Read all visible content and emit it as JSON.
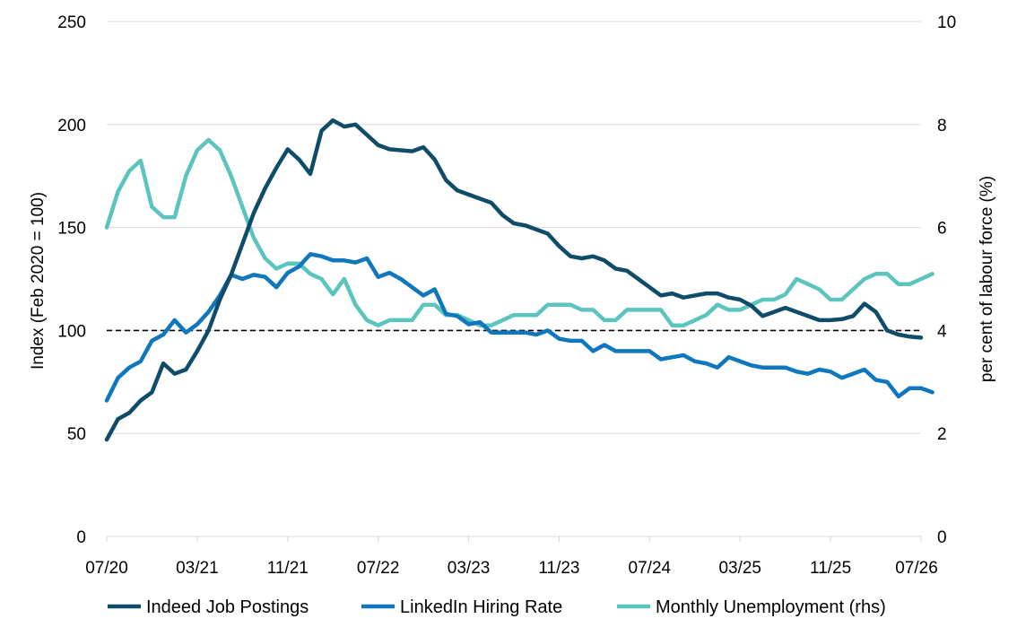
{
  "chart_data": {
    "type": "line",
    "title": "",
    "x_axis": {
      "tick_labels": [
        "07/20",
        "03/21",
        "11/21",
        "07/22",
        "03/23",
        "11/23",
        "07/24",
        "03/25",
        "11/25",
        "07/26"
      ],
      "range": [
        "2020-07",
        "2026-07"
      ]
    },
    "y_left": {
      "label": "Index (Feb 2020 = 100)",
      "ylim": [
        0,
        250
      ],
      "ticks": [
        0,
        50,
        100,
        150,
        200,
        250
      ]
    },
    "y_right": {
      "label": "per cent of labour force (%)",
      "ylim": [
        0,
        10
      ],
      "ticks": [
        0,
        2,
        4,
        6,
        8,
        10
      ]
    },
    "grid": "horizontal",
    "reference_line": {
      "value": 100,
      "axis": "left",
      "style": "dashed",
      "color": "#000000"
    },
    "legend_position": "bottom",
    "series": [
      {
        "name": "Indeed Job Postings",
        "axis": "left",
        "color": "#0f4c6a",
        "start": "2020-07",
        "values": [
          47,
          57,
          60,
          66,
          70,
          84,
          79,
          81,
          90,
          100,
          115,
          127,
          142,
          157,
          169,
          179,
          188,
          183,
          176,
          197,
          202,
          199,
          200,
          195,
          190,
          188,
          187.5,
          187,
          189,
          183,
          173,
          168,
          166,
          164,
          162,
          156,
          152,
          151,
          149,
          147,
          141,
          136,
          135,
          136,
          134,
          130,
          129,
          125,
          121,
          117,
          118,
          116,
          117,
          118,
          118,
          116,
          115,
          112,
          107,
          109,
          111,
          109,
          107,
          105,
          105,
          105.5,
          107,
          113,
          109,
          100,
          98,
          97,
          96.5
        ]
      },
      {
        "name": "LinkedIn Hiring Rate",
        "axis": "left",
        "color": "#0f77bd",
        "start": "2020-07",
        "values": [
          66,
          77,
          82,
          85,
          95,
          98,
          105,
          99,
          103,
          109,
          117,
          127,
          125,
          127,
          126,
          121,
          128,
          131,
          137,
          136,
          134,
          134,
          133,
          135,
          126,
          128,
          125,
          121,
          117,
          120,
          108,
          107,
          103,
          104,
          99,
          99,
          99,
          99,
          98,
          100,
          96,
          95,
          95,
          90,
          93,
          90,
          90,
          90,
          90,
          86,
          87,
          88,
          85,
          84,
          82,
          87,
          85,
          83,
          82,
          82,
          82,
          80,
          79,
          81,
          80,
          77,
          79,
          81,
          76,
          75,
          68,
          72,
          72,
          70
        ]
      },
      {
        "name": "Monthly Unemployment (rhs)",
        "axis": "right",
        "color": "#5bc4bf",
        "start": "2020-07",
        "values": [
          6.0,
          6.7,
          7.1,
          7.3,
          6.4,
          6.2,
          6.2,
          7.0,
          7.5,
          7.7,
          7.5,
          7.0,
          6.4,
          5.8,
          5.4,
          5.2,
          5.3,
          5.3,
          5.1,
          5.0,
          4.7,
          5.0,
          4.5,
          4.2,
          4.1,
          4.2,
          4.2,
          4.2,
          4.5,
          4.5,
          4.3,
          4.3,
          4.2,
          4.1,
          4.1,
          4.2,
          4.3,
          4.3,
          4.3,
          4.5,
          4.5,
          4.5,
          4.4,
          4.4,
          4.2,
          4.2,
          4.4,
          4.4,
          4.4,
          4.4,
          4.1,
          4.1,
          4.2,
          4.3,
          4.5,
          4.4,
          4.4,
          4.5,
          4.6,
          4.6,
          4.7,
          5.0,
          4.9,
          4.8,
          4.6,
          4.6,
          4.8,
          5.0,
          5.1,
          5.1,
          4.9,
          4.9,
          5.0,
          5.1
        ]
      }
    ]
  }
}
